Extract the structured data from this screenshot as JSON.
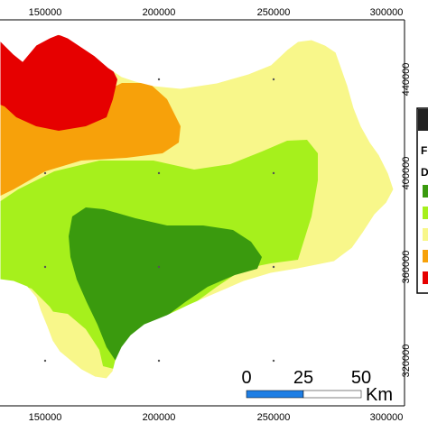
{
  "axis_x": {
    "ticks": [
      "150000",
      "200000",
      "250000",
      "300000"
    ]
  },
  "axis_y": {
    "ticks": [
      "440000",
      "400000",
      "360000",
      "320000"
    ]
  },
  "legend": {
    "title_partial": "F",
    "subtitle_partial": "D",
    "classes": [
      {
        "color": "#3a9a0e",
        "name": "dark-green"
      },
      {
        "color": "#a6f01c",
        "name": "light-green"
      },
      {
        "color": "#f8f78a",
        "name": "pale-yellow"
      },
      {
        "color": "#f7a10a",
        "name": "orange"
      },
      {
        "color": "#e60000",
        "name": "red"
      }
    ]
  },
  "scale_bar": {
    "labels": [
      "0",
      "25",
      "50"
    ],
    "unit": "Km",
    "colors": {
      "filled": "#1e7ee4",
      "empty": "#ffffff"
    }
  },
  "colors": {
    "zone_red": "#e60000",
    "zone_orange": "#f7a10a",
    "zone_yellow": "#f8f78a",
    "zone_light_green": "#a6f01c",
    "zone_dark_green": "#3a9a0e",
    "frame": "#000000"
  }
}
